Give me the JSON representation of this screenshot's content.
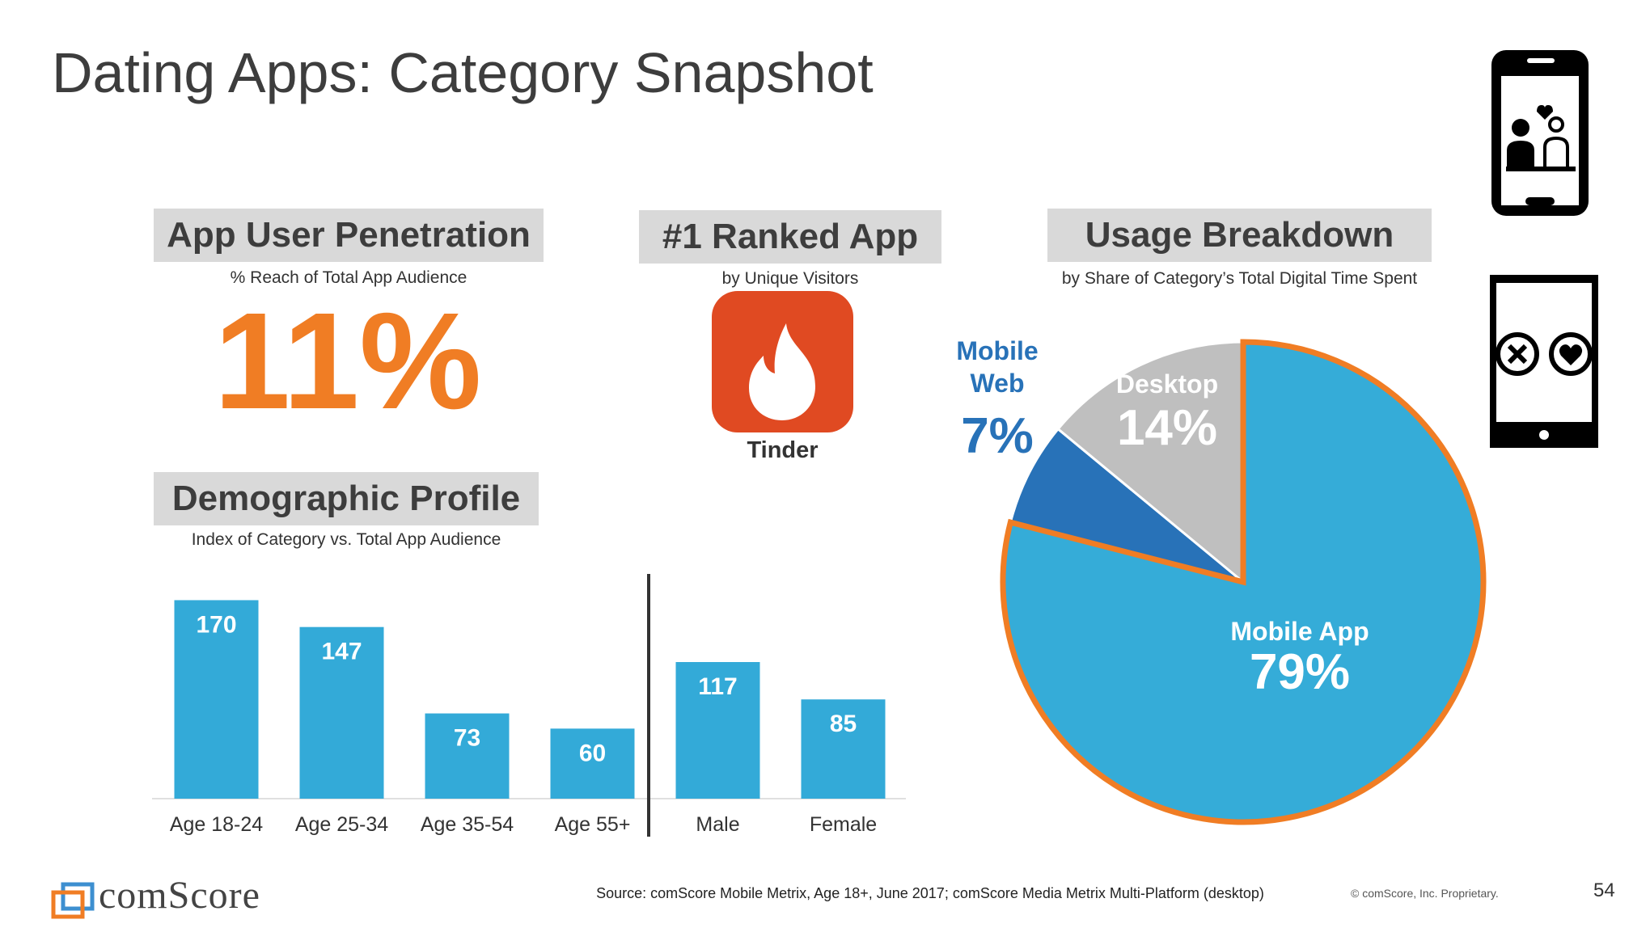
{
  "title": "Dating Apps: Category Snapshot",
  "penetration": {
    "heading": "App User Penetration",
    "subheading": "% Reach of Total App Audience",
    "value": "11%"
  },
  "ranked_app": {
    "heading": "#1 Ranked App",
    "subheading": "by Unique Visitors",
    "app_name": "Tinder",
    "icon": "flame-icon"
  },
  "demographic": {
    "heading": "Demographic Profile",
    "subheading": "Index of Category vs. Total App Audience"
  },
  "usage": {
    "heading": "Usage Breakdown",
    "subheading": "by Share of Category’s Total Digital Time Spent"
  },
  "chart_data": [
    {
      "type": "bar",
      "categories": [
        "Age 18-24",
        "Age 25-34",
        "Age 35-54",
        "Age 55+",
        "Male",
        "Female"
      ],
      "values": [
        170,
        147,
        73,
        60,
        117,
        85
      ],
      "data_labels": [
        "170",
        "147",
        "73",
        "60",
        "117",
        "85"
      ],
      "ylim": [
        0,
        180
      ],
      "grid": false,
      "bar_color": "#33aad8",
      "divider_after_index": 3
    },
    {
      "type": "pie",
      "slices": [
        {
          "label": "Mobile App",
          "value": 79,
          "value_label": "79%",
          "color": "#35acd8"
        },
        {
          "label": "Mobile Web",
          "value": 7,
          "value_label": "7%",
          "color": "#2872b8"
        },
        {
          "label": "Desktop",
          "value": 14,
          "value_label": "14%",
          "color": "#bfbfbf"
        }
      ],
      "highlight_border_color": "#f07d24"
    }
  ],
  "icons": [
    "phone-couple-icon",
    "phone-swipe-icon",
    "comscore-logo-icon"
  ],
  "footer": {
    "logo_text": "comScore",
    "source": "Source: comScore Mobile Metrix, Age 18+, June 2017; comScore Media Metrix Multi-Platform (desktop)",
    "copyright": "© comScore, Inc. Proprietary.",
    "page_number": "54"
  },
  "colors": {
    "accent_orange": "#f07d24",
    "tinder_red": "#e04a22",
    "bar_blue": "#33aad8",
    "mobile_web_blue": "#2872b8",
    "heading_gray": "#d9d9d9"
  }
}
